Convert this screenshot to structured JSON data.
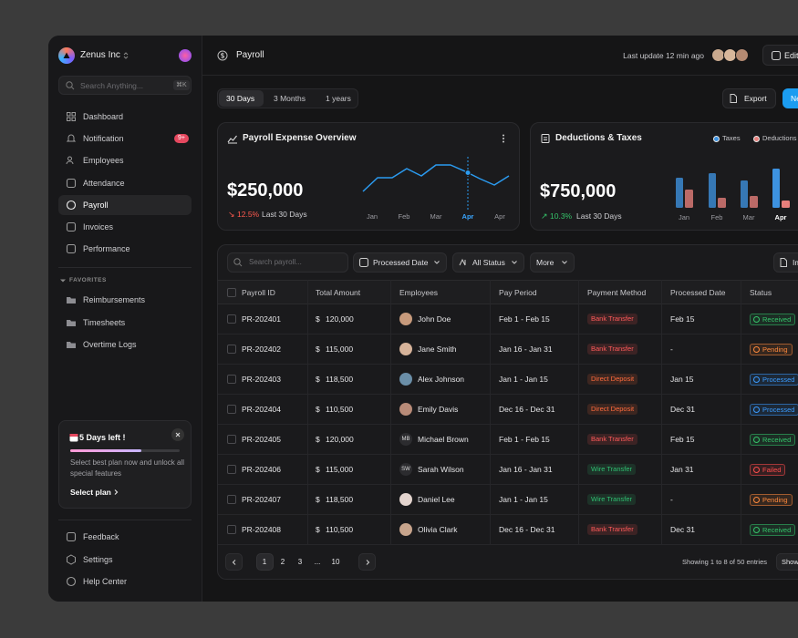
{
  "sidebar": {
    "workspace": "Zenus Inc",
    "search_placeholder": "Search Anything...",
    "shortcut": "⌘K",
    "nav": [
      {
        "label": "Dashboard"
      },
      {
        "label": "Notification",
        "badge": "9+"
      },
      {
        "label": "Employees"
      },
      {
        "label": "Attendance"
      },
      {
        "label": "Payroll",
        "active": true
      },
      {
        "label": "Invoices"
      },
      {
        "label": "Performance"
      }
    ],
    "favorites_label": "FAVORITES",
    "favorites": [
      "Reimbursements",
      "Timesheets",
      "Overtime Logs"
    ],
    "promo": {
      "title": "5 Days left !",
      "text": "Select best plan now and unlock all special features",
      "action": "Select plan",
      "progress": 65
    },
    "footer": [
      "Feedback",
      "Settings",
      "Help Center"
    ]
  },
  "header": {
    "title": "Payroll",
    "last_update": "Last update 12 min ago",
    "edit": "Edit"
  },
  "toolbar": {
    "ranges": [
      "30 Days",
      "3 Months",
      "1 years"
    ],
    "export": "Export",
    "new": "New"
  },
  "cards": [
    {
      "title": "Payroll Expense Overview",
      "value": "$250,000",
      "change_icon": "↘",
      "change": "12.5%",
      "change_color": "#ff5a4f",
      "period": "Last 30 Days",
      "chart": {
        "labels": [
          "Jan",
          "Feb",
          "Mar",
          "Apr",
          "Apr"
        ],
        "values": [
          10,
          25,
          25,
          35,
          27,
          39,
          39,
          32,
          24,
          17,
          27
        ],
        "color": "#2b9bf0",
        "highlight_index": 3
      }
    },
    {
      "title": "Deductions & Taxes",
      "value": "$750,000",
      "change_icon": "↗",
      "change": "10.3%",
      "change_color": "#35c46a",
      "period": "Last 30 Days",
      "chart": {
        "labels": [
          "Jan",
          "Feb",
          "Mar",
          "Apr"
        ],
        "highlight_index": 3,
        "series": [
          {
            "name": "Taxes",
            "color": "#3d92e0",
            "values": [
              33,
              38,
              30,
              43
            ]
          },
          {
            "name": "Deductions",
            "color": "#e8807c",
            "values": [
              20,
              11,
              13,
              8
            ]
          }
        ]
      }
    }
  ],
  "table": {
    "search_placeholder": "Search payroll...",
    "filters": [
      "Processed Date",
      "All Status",
      "More"
    ],
    "import": "Import",
    "columns": [
      "Payroll ID",
      "Total Amount",
      "Employees",
      "Pay Period",
      "Payment Method",
      "Processed Date",
      "Status"
    ],
    "rows": [
      {
        "id": "PR-202401",
        "currency": "$",
        "amount": "120,000",
        "employee": "John Doe",
        "avatar": null,
        "period": "Feb 1 - Feb 15",
        "method": "Bank Transfer",
        "method_color": "#ff5a5a",
        "processed": "Feb 15",
        "status": "Received",
        "status_color": "#35c46a"
      },
      {
        "id": "PR-202402",
        "currency": "$",
        "amount": "115,000",
        "employee": "Jane Smith",
        "avatar": null,
        "period": "Jan 16 - Jan 31",
        "method": "Bank Transfer",
        "method_color": "#ff5a5a",
        "processed": "-",
        "status": "Pending",
        "status_color": "#ff8a3d"
      },
      {
        "id": "PR-202403",
        "currency": "$",
        "amount": "118,500",
        "employee": "Alex Johnson",
        "avatar": null,
        "period": "Jan 1 - Jan 15",
        "method": "Direct Deposit",
        "method_color": "#ff6b3d",
        "processed": "Jan 15",
        "status": "Processed",
        "status_color": "#3b9cff"
      },
      {
        "id": "PR-202404",
        "currency": "$",
        "amount": "110,500",
        "employee": "Emily Davis",
        "avatar": null,
        "period": "Dec 16 - Dec 31",
        "method": "Direct Deposit",
        "method_color": "#ff6b3d",
        "processed": "Dec 31",
        "status": "Processed",
        "status_color": "#3b9cff"
      },
      {
        "id": "PR-202405",
        "currency": "$",
        "amount": "120,000",
        "employee": "Michael Brown",
        "avatar": "MB",
        "period": "Feb 1 - Feb 15",
        "method": "Bank Transfer",
        "method_color": "#ff5a5a",
        "processed": "Feb 15",
        "status": "Received",
        "status_color": "#35c46a"
      },
      {
        "id": "PR-202406",
        "currency": "$",
        "amount": "115,000",
        "employee": "Sarah Wilson",
        "avatar": "SW",
        "period": "Jan 16 - Jan 31",
        "method": "Wire Transfer",
        "method_color": "#2fbf71",
        "processed": "Jan 31",
        "status": "Failed",
        "status_color": "#ff4d4d"
      },
      {
        "id": "PR-202407",
        "currency": "$",
        "amount": "118,500",
        "employee": "Daniel Lee",
        "avatar": null,
        "period": "Jan 1 - Jan 15",
        "method": "Wire Transfer",
        "method_color": "#2fbf71",
        "processed": "-",
        "status": "Pending",
        "status_color": "#ff8a3d"
      },
      {
        "id": "PR-202408",
        "currency": "$",
        "amount": "110,500",
        "employee": "Olivia Clark",
        "avatar": null,
        "period": "Dec 16 - Dec 31",
        "method": "Bank Transfer",
        "method_color": "#ff5a5a",
        "processed": "Dec 31",
        "status": "Received",
        "status_color": "#35c46a"
      }
    ]
  },
  "pagination": {
    "pages": [
      "1",
      "2",
      "3",
      "...",
      "10"
    ],
    "info": "Showing 1 to 8 of 50 entries",
    "show": "Show"
  }
}
